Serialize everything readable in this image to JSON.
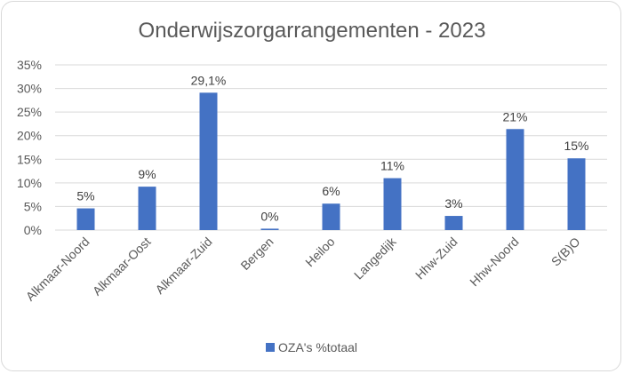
{
  "chart_data": {
    "type": "bar",
    "title": "Onderwijszorgarrangementen  - 2023",
    "xlabel": "",
    "ylabel": "",
    "categories": [
      "Alkmaar-Noord",
      "Alkmaar-Oost",
      "Alkmaar-Zuid",
      "Bergen",
      "Heiloo",
      "Langedijk",
      "Hhw-Zuid",
      "Hhw-Noord",
      "S(B)O"
    ],
    "series": [
      {
        "name": "OZA's %totaal",
        "values": [
          4.6,
          9.2,
          29.1,
          0.3,
          5.6,
          11.0,
          3.0,
          21.4,
          15.2
        ],
        "labels": [
          "5%",
          "9%",
          "29,1%",
          "0%",
          "6%",
          "11%",
          "3%",
          "21%",
          "15%"
        ]
      }
    ],
    "ylim": [
      0,
      35
    ],
    "yticks": [
      "0%",
      "5%",
      "10%",
      "15%",
      "20%",
      "25%",
      "30%",
      "35%"
    ],
    "grid": true,
    "legend_position": "bottom",
    "colors": {
      "bar": "#4472c4",
      "grid": "#d9d9d9",
      "text": "#595959"
    }
  }
}
